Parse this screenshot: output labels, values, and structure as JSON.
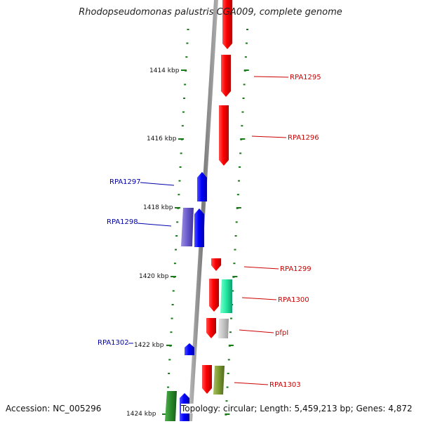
{
  "title": "Rhodopseudomonas palustris CGA009, complete genome",
  "footer": {
    "accession": "Accession: NC_005296",
    "summary": "Topology: circular; Length: 5,459,213 bp; Genes: 4,872"
  },
  "scale_labels": [
    "1414 kbp",
    "1416 kbp",
    "1418 kbp",
    "1420 kbp",
    "1422 kbp",
    "1424 kbp"
  ],
  "gene_labels": {
    "forward": [
      "RPA1295",
      "RPA1296",
      "RPA1299",
      "RPA1300",
      "pfpI",
      "RPA1303"
    ],
    "reverse": [
      "RPA1297",
      "RPA1298",
      "RPA1302"
    ]
  },
  "colors": {
    "forward_cds": "#ff0000",
    "reverse_cds": "#0000ff",
    "forward_label": "#cc0000",
    "reverse_label": "#0000aa",
    "teal_feature": "#22e8a0",
    "gray_feature": "#c0c0c0",
    "olive_feature": "#7a9a30",
    "purple_feature": "#6a5acd",
    "green_feature": "#2a8a2a",
    "backbone": "#888888",
    "tick": "#1a7a1a"
  }
}
